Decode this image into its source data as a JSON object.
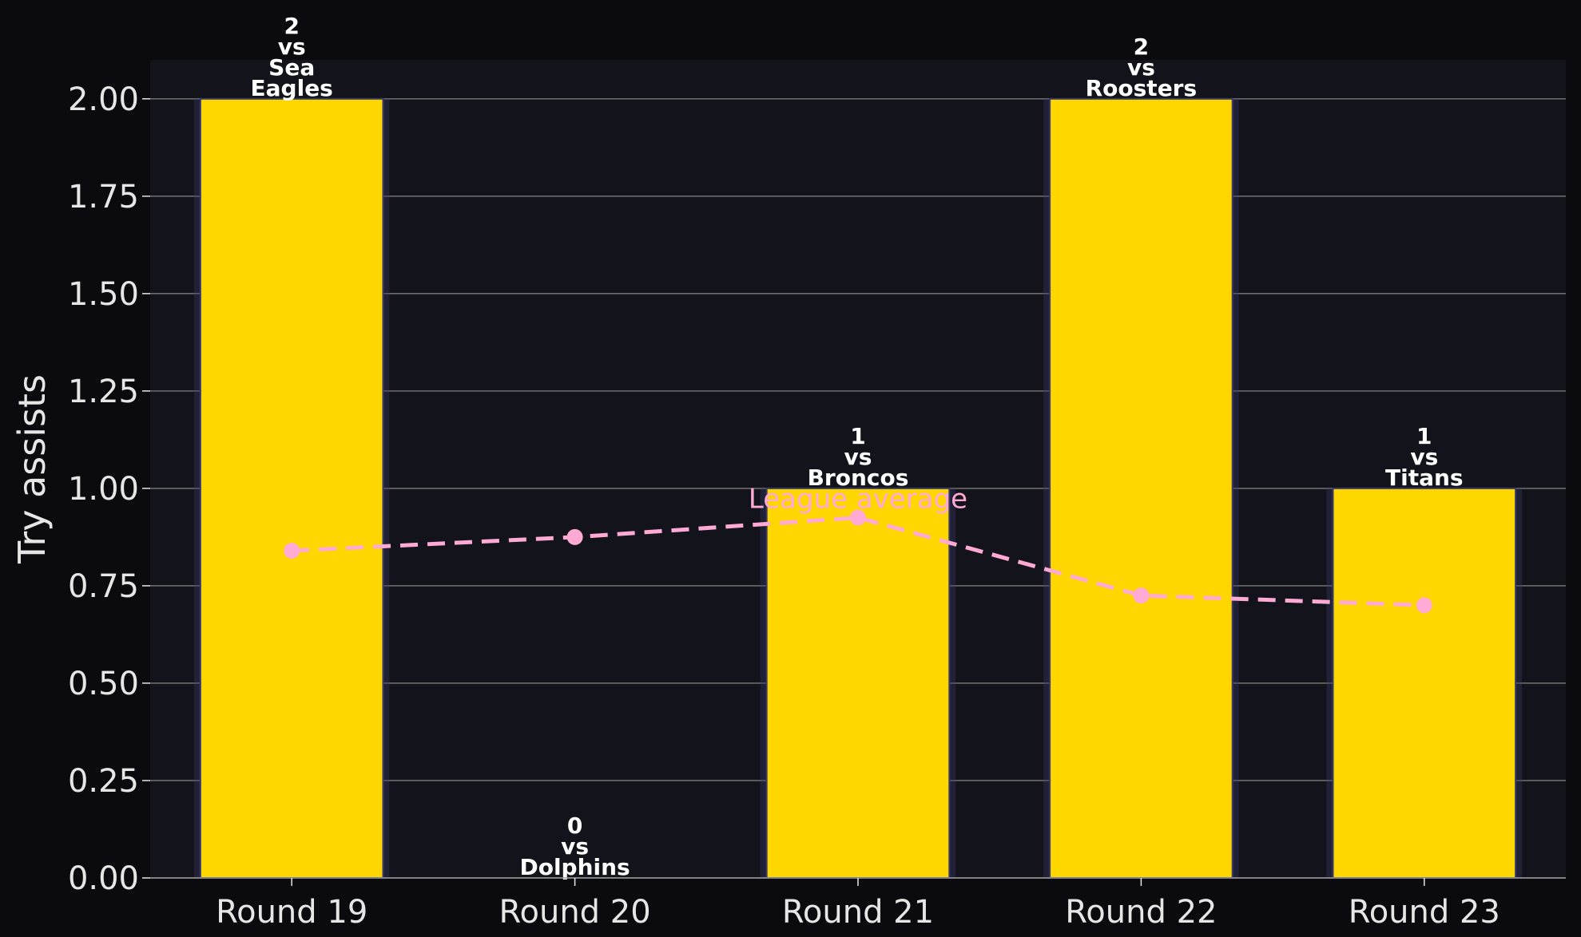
{
  "chart_data": {
    "type": "bar",
    "title": "",
    "xlabel": "",
    "ylabel": "Try assists",
    "categories": [
      "Round 19",
      "Round 20",
      "Round 21",
      "Round 22",
      "Round 23"
    ],
    "series": [
      {
        "name": "",
        "values": [
          2,
          0,
          1,
          2,
          1
        ]
      }
    ],
    "bar_labels": [
      [
        "2",
        "vs",
        "Sea",
        "Eagles"
      ],
      [
        "0",
        "vs",
        "Dolphins"
      ],
      [
        "1",
        "vs",
        "Broncos"
      ],
      [
        "2",
        "vs",
        "Roosters"
      ],
      [
        "1",
        "vs",
        "Titans"
      ]
    ],
    "line_series": {
      "name": "League average",
      "values": [
        0.84,
        0.875,
        0.925,
        0.725,
        0.7
      ]
    },
    "y_ticks": [
      "0.00",
      "0.25",
      "0.50",
      "0.75",
      "1.00",
      "1.25",
      "1.50",
      "1.75",
      "2.00"
    ],
    "ylim": [
      0,
      2.1
    ],
    "grid": true,
    "legend": "none",
    "colors": {
      "background": "#0b0b0f",
      "plot_background": "#13141b",
      "bar": "#ffd700",
      "bar_edge": "#3a3a6a",
      "line": "#ffaad4",
      "grid": "#6b6b6b",
      "text": "#e6e6e6"
    }
  }
}
